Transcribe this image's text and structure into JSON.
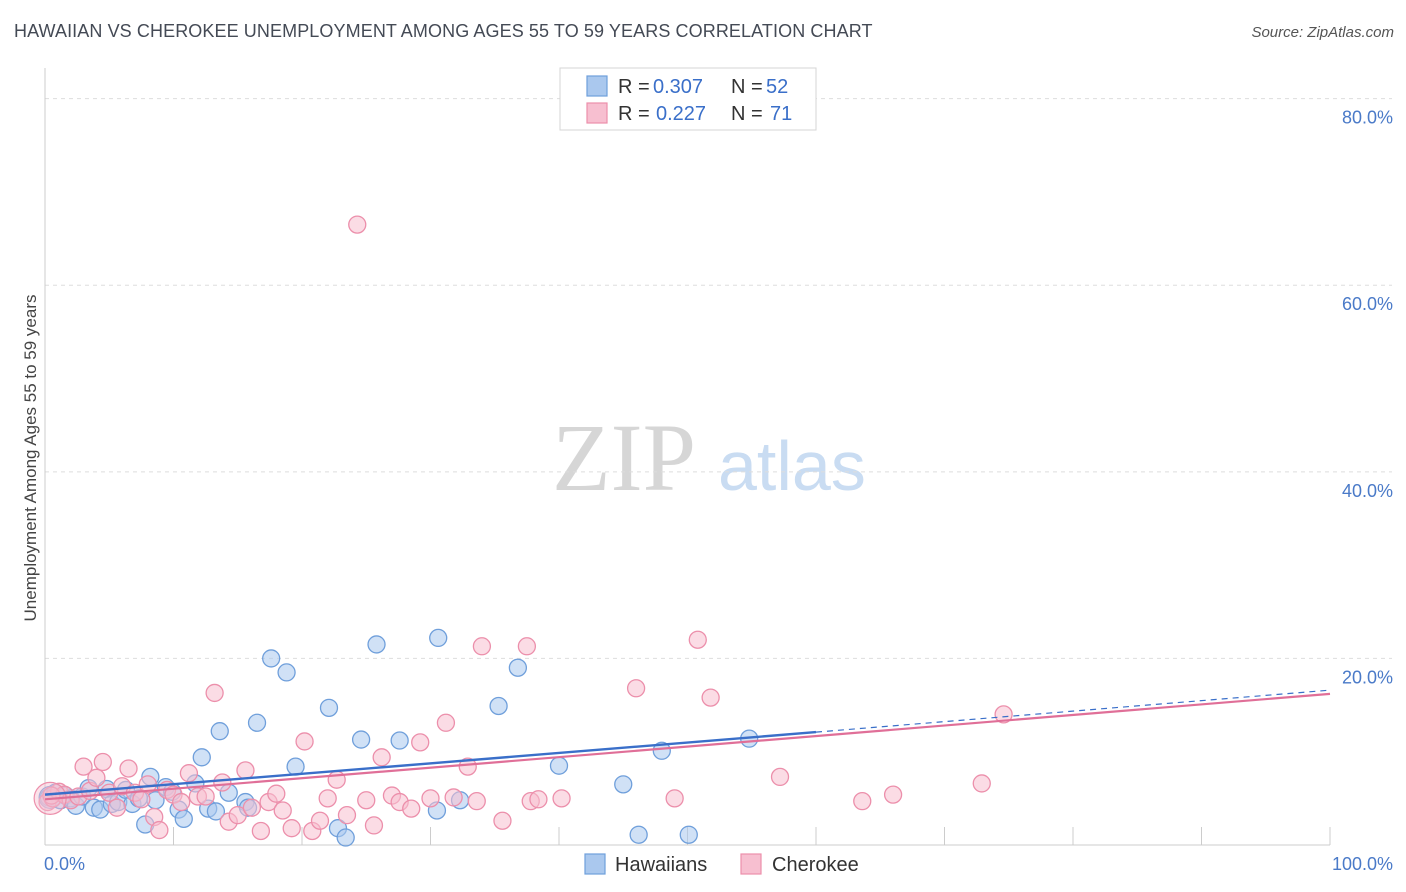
{
  "header": {
    "title": "HAWAIIAN VS CHEROKEE UNEMPLOYMENT AMONG AGES 55 TO 59 YEARS CORRELATION CHART",
    "source": "Source: ZipAtlas.com"
  },
  "watermark": {
    "zip": "ZIP",
    "atlas": "atlas"
  },
  "legend_top": {
    "rows": [
      {
        "r_label": "R =",
        "r_value": "0.307",
        "n_label": "N =",
        "n_value": "52"
      },
      {
        "r_label": "R =",
        "r_value": "0.227",
        "n_label": "N =",
        "n_value": "71"
      }
    ]
  },
  "legend_bottom": {
    "items": [
      "Hawaiians",
      "Cherokee"
    ]
  },
  "colors": {
    "blue_fill": "#aac8ee",
    "blue_stroke": "#6f9fdb",
    "blue_line": "#3a6fc9",
    "pink_fill": "#f7bfd0",
    "pink_stroke": "#ec8fab",
    "pink_line": "#e06f98",
    "grid": "#dddddd",
    "tick_text": "#4a7ac8"
  },
  "chart_data": {
    "type": "scatter",
    "title": "HAWAIIAN VS CHEROKEE UNEMPLOYMENT AMONG AGES 55 TO 59 YEARS CORRELATION CHART",
    "xlabel": "",
    "ylabel": "Unemployment Among Ages 55 to 59 years",
    "xlim": [
      0,
      100
    ],
    "ylim": [
      0,
      82
    ],
    "x_tick_labels": [
      "0.0%",
      "100.0%"
    ],
    "y_ticks": [
      20,
      40,
      60,
      80
    ],
    "y_tick_labels": [
      "20.0%",
      "40.0%",
      "60.0%",
      "80.0%"
    ],
    "grid": true,
    "series": [
      {
        "name": "Hawaiians",
        "r": 0.307,
        "n": 52,
        "trend": {
          "x0": 0,
          "y0": 5.4,
          "x1": 60,
          "y1": 12.1,
          "dashed_to_x": 100,
          "dashed_to_y": 16.6
        },
        "points": [
          [
            0.3,
            5.1
          ],
          [
            0.8,
            5.6
          ],
          [
            1.2,
            4.8
          ],
          [
            1.6,
            5.3
          ],
          [
            2.0,
            5.0
          ],
          [
            2.4,
            4.2
          ],
          [
            2.9,
            5.2
          ],
          [
            3.4,
            6.1
          ],
          [
            3.8,
            4.0
          ],
          [
            4.3,
            3.8
          ],
          [
            4.8,
            6.0
          ],
          [
            5.2,
            4.4
          ],
          [
            5.7,
            4.6
          ],
          [
            6.3,
            5.9
          ],
          [
            6.8,
            4.4
          ],
          [
            7.3,
            5.0
          ],
          [
            7.8,
            2.2
          ],
          [
            8.2,
            7.3
          ],
          [
            8.6,
            4.8
          ],
          [
            9.4,
            6.2
          ],
          [
            9.9,
            5.7
          ],
          [
            10.4,
            3.8
          ],
          [
            10.8,
            2.8
          ],
          [
            11.7,
            6.6
          ],
          [
            12.2,
            9.4
          ],
          [
            12.7,
            3.9
          ],
          [
            13.3,
            3.6
          ],
          [
            13.6,
            12.2
          ],
          [
            14.3,
            5.6
          ],
          [
            15.6,
            4.6
          ],
          [
            15.8,
            4.0
          ],
          [
            16.5,
            13.1
          ],
          [
            17.6,
            20.0
          ],
          [
            18.8,
            18.5
          ],
          [
            19.5,
            8.4
          ],
          [
            22.1,
            14.7
          ],
          [
            22.8,
            1.8
          ],
          [
            23.4,
            0.8
          ],
          [
            24.6,
            11.3
          ],
          [
            25.8,
            21.5
          ],
          [
            27.6,
            11.2
          ],
          [
            30.5,
            3.7
          ],
          [
            30.6,
            22.2
          ],
          [
            32.3,
            4.8
          ],
          [
            35.3,
            14.9
          ],
          [
            36.8,
            19.0
          ],
          [
            40.0,
            8.5
          ],
          [
            45.0,
            6.5
          ],
          [
            46.2,
            1.1
          ],
          [
            48.0,
            10.1
          ],
          [
            50.1,
            1.1
          ],
          [
            54.8,
            11.4
          ]
        ]
      },
      {
        "name": "Cherokee",
        "r": 0.227,
        "n": 71,
        "trend": {
          "x0": 0,
          "y0": 4.9,
          "x1": 100,
          "y1": 16.2
        },
        "points": [
          [
            0.2,
            4.6
          ],
          [
            0.6,
            5.0
          ],
          [
            1.1,
            5.7
          ],
          [
            1.5,
            5.4
          ],
          [
            2.0,
            4.8
          ],
          [
            2.6,
            5.2
          ],
          [
            3.0,
            8.4
          ],
          [
            3.5,
            5.8
          ],
          [
            4.0,
            7.2
          ],
          [
            4.5,
            8.9
          ],
          [
            5.0,
            5.6
          ],
          [
            5.6,
            4.0
          ],
          [
            6.0,
            6.3
          ],
          [
            6.5,
            8.2
          ],
          [
            7.0,
            5.6
          ],
          [
            7.5,
            4.9
          ],
          [
            8.0,
            6.5
          ],
          [
            8.5,
            3.0
          ],
          [
            8.9,
            1.6
          ],
          [
            9.5,
            5.9
          ],
          [
            10.0,
            5.4
          ],
          [
            10.6,
            4.6
          ],
          [
            11.2,
            7.7
          ],
          [
            11.9,
            5.2
          ],
          [
            12.5,
            5.2
          ],
          [
            13.2,
            16.3
          ],
          [
            13.8,
            6.7
          ],
          [
            14.3,
            2.5
          ],
          [
            15.0,
            3.2
          ],
          [
            15.6,
            8.0
          ],
          [
            16.1,
            4.0
          ],
          [
            16.8,
            1.5
          ],
          [
            17.4,
            4.6
          ],
          [
            18.0,
            5.5
          ],
          [
            18.5,
            3.7
          ],
          [
            19.2,
            1.8
          ],
          [
            20.2,
            11.1
          ],
          [
            20.8,
            1.5
          ],
          [
            21.4,
            2.6
          ],
          [
            22.0,
            5.0
          ],
          [
            22.7,
            7.0
          ],
          [
            23.5,
            3.2
          ],
          [
            24.3,
            66.5
          ],
          [
            25.0,
            4.8
          ],
          [
            25.6,
            2.1
          ],
          [
            26.2,
            9.4
          ],
          [
            27.0,
            5.3
          ],
          [
            27.6,
            4.6
          ],
          [
            28.5,
            3.9
          ],
          [
            29.2,
            11.0
          ],
          [
            30.0,
            5.0
          ],
          [
            31.2,
            13.1
          ],
          [
            31.8,
            5.1
          ],
          [
            32.9,
            8.4
          ],
          [
            33.6,
            4.7
          ],
          [
            34.0,
            21.3
          ],
          [
            35.6,
            2.6
          ],
          [
            37.5,
            21.3
          ],
          [
            37.8,
            4.7
          ],
          [
            38.4,
            4.9
          ],
          [
            40.2,
            5.0
          ],
          [
            46.0,
            16.8
          ],
          [
            49.0,
            5.0
          ],
          [
            50.8,
            22.0
          ],
          [
            51.8,
            15.8
          ],
          [
            57.2,
            7.3
          ],
          [
            63.6,
            4.7
          ],
          [
            66.0,
            5.4
          ],
          [
            72.9,
            6.6
          ],
          [
            74.6,
            14.0
          ],
          [
            0.5,
            5.3
          ]
        ]
      }
    ]
  }
}
